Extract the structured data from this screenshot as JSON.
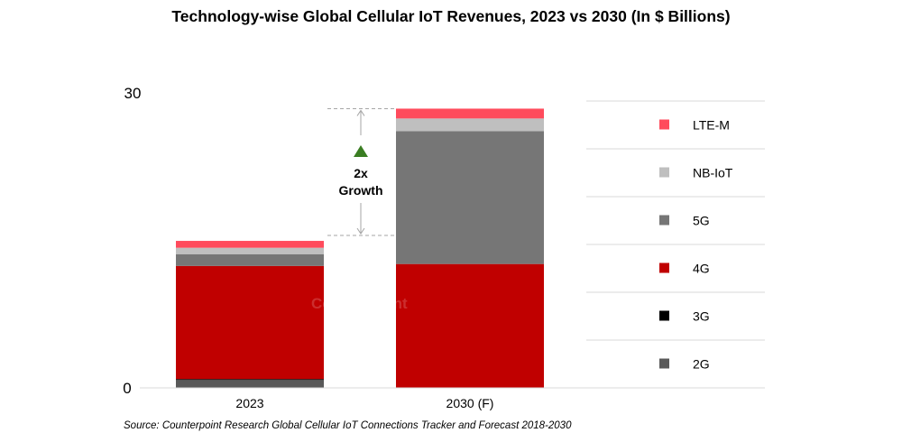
{
  "chart_data": {
    "type": "bar",
    "stacked": true,
    "title": "Technology-wise Global Cellular IoT Revenues, 2023 vs 2030 (In $ Billions)",
    "categories": [
      "2023",
      "2030 (F)"
    ],
    "ylim": [
      0,
      30
    ],
    "yticks": [
      "0",
      "30"
    ],
    "legend_position": "right",
    "series": [
      {
        "name": "2G",
        "color": "#595959",
        "values": [
          0.8,
          0
        ]
      },
      {
        "name": "3G",
        "color": "#000000",
        "values": [
          0.1,
          0
        ]
      },
      {
        "name": "4G",
        "color": "#c00000",
        "values": [
          11.5,
          12.6
        ]
      },
      {
        "name": "5G",
        "color": "#767676",
        "values": [
          1.2,
          13.5
        ]
      },
      {
        "name": "NB-IoT",
        "color": "#bfbfbf",
        "values": [
          0.65,
          1.3
        ]
      },
      {
        "name": "LTE-M",
        "color": "#ff4b5c",
        "values": [
          0.7,
          1.0
        ]
      }
    ],
    "annotation": {
      "line1": "2x",
      "line2": "Growth",
      "marker_color": "#3a7d22"
    },
    "watermark": "Counterpoint"
  },
  "source": "Source: Counterpoint Research Global Cellular IoT Connections Tracker and Forecast 2018-2030"
}
